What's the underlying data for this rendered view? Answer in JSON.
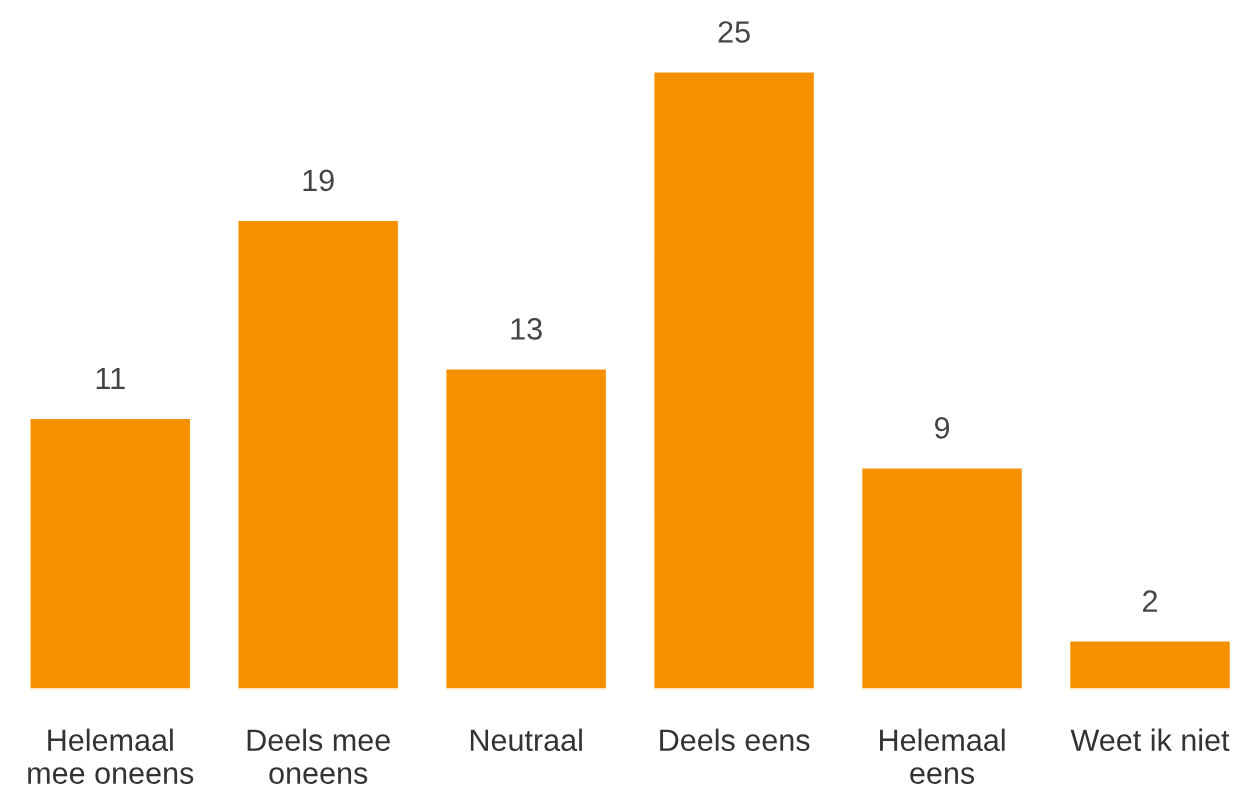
{
  "chart_data": {
    "type": "bar",
    "categories": [
      "Helemaal\nmee oneens",
      "Deels mee\noneens",
      "Neutraal",
      "Deels eens",
      "Helemaal\neens",
      "Weet ik niet"
    ],
    "values": [
      11,
      19,
      13,
      25,
      9,
      2
    ],
    "color": "#f59100",
    "data_labels": true,
    "grid": false,
    "legend": false
  }
}
